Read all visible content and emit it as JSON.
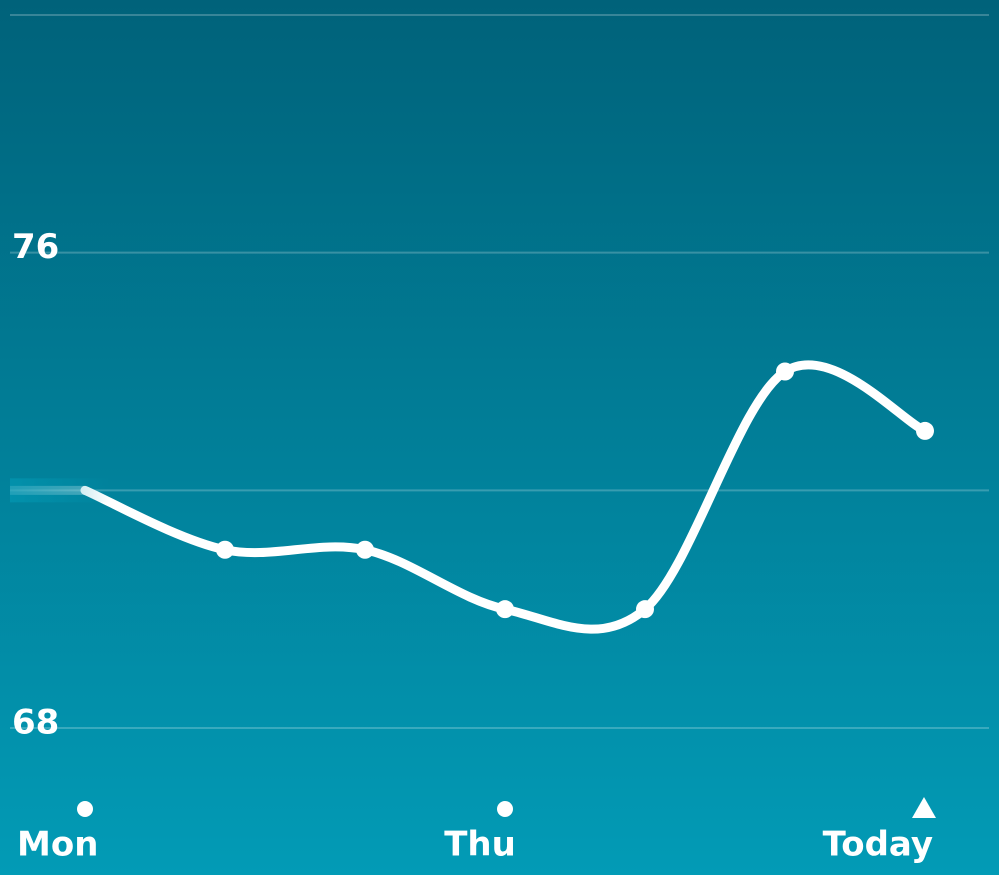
{
  "chart_data": {
    "type": "line",
    "categories": [
      "Mon",
      null,
      null,
      "Thu",
      null,
      null,
      "Today"
    ],
    "values": [
      72,
      71,
      71,
      70,
      70,
      74,
      73
    ],
    "color": "#ffffff",
    "ylim": [
      68,
      80
    ],
    "yticks": [
      68,
      76
    ],
    "gridlines": [
      72,
      80
    ],
    "grid": true
  }
}
